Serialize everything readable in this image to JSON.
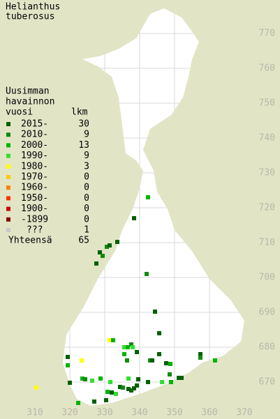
{
  "title": [
    "Helianthus",
    "tuberosus"
  ],
  "legend": {
    "heading": [
      "Uusimman",
      "havainnon",
      "vuosi"
    ],
    "count_heading": "lkm",
    "rows": [
      {
        "label": "2015-",
        "count": 30,
        "color": "#006000"
      },
      {
        "label": "2010-",
        "count": 9,
        "color": "#108a10"
      },
      {
        "label": "2000-",
        "count": 13,
        "color": "#00b400"
      },
      {
        "label": "1990-",
        "count": 9,
        "color": "#30e030"
      },
      {
        "label": "1980-",
        "count": 3,
        "color": "#ffff00"
      },
      {
        "label": "1970-",
        "count": 0,
        "color": "#ffcc00"
      },
      {
        "label": "1960-",
        "count": 0,
        "color": "#ff8000"
      },
      {
        "label": "1950-",
        "count": 0,
        "color": "#ff3000"
      },
      {
        "label": "1900-",
        "count": 0,
        "color": "#cc0000"
      },
      {
        "label": "-1899",
        "count": 0,
        "color": "#880000"
      },
      {
        "label": "???",
        "count": 1,
        "color": "#c8c8c8"
      }
    ],
    "total_label": "Yhteensä",
    "total": 65
  },
  "xlim": [
    300,
    380
  ],
  "ylim": [
    660,
    780
  ],
  "xticks": [
    310,
    320,
    330,
    340,
    350,
    360,
    370
  ],
  "yticks": [
    670,
    680,
    690,
    700,
    710,
    720,
    730,
    740,
    750,
    760,
    770
  ],
  "points": [
    {
      "x": 342.4,
      "y": 723,
      "period": 2
    },
    {
      "x": 338.4,
      "y": 717,
      "period": 0
    },
    {
      "x": 333.6,
      "y": 710.2,
      "period": 0
    },
    {
      "x": 330.6,
      "y": 708.8,
      "period": 1
    },
    {
      "x": 331.4,
      "y": 709.2,
      "period": 0
    },
    {
      "x": 328.6,
      "y": 707.2,
      "period": 0
    },
    {
      "x": 329.4,
      "y": 706.2,
      "period": 1
    },
    {
      "x": 327.6,
      "y": 704,
      "period": 0
    },
    {
      "x": 342,
      "y": 701,
      "period": 1
    },
    {
      "x": 344.4,
      "y": 690.2,
      "period": 0
    },
    {
      "x": 345.6,
      "y": 684,
      "period": 0
    },
    {
      "x": 331.4,
      "y": 682,
      "period": 4
    },
    {
      "x": 332.4,
      "y": 682,
      "period": 2
    },
    {
      "x": 335.6,
      "y": 680,
      "period": 3
    },
    {
      "x": 336.6,
      "y": 680,
      "period": 2
    },
    {
      "x": 337.6,
      "y": 680.8,
      "period": 1
    },
    {
      "x": 338,
      "y": 680,
      "period": 3
    },
    {
      "x": 335.6,
      "y": 678,
      "period": 2
    },
    {
      "x": 336.4,
      "y": 676.2,
      "period": 1
    },
    {
      "x": 339.2,
      "y": 678.6,
      "period": 0
    },
    {
      "x": 345.6,
      "y": 678,
      "period": 0
    },
    {
      "x": 343,
      "y": 676.2,
      "period": 1
    },
    {
      "x": 343.6,
      "y": 676.2,
      "period": 0
    },
    {
      "x": 347.6,
      "y": 675.4,
      "period": 0
    },
    {
      "x": 348.8,
      "y": 675.2,
      "period": 2
    },
    {
      "x": 357.4,
      "y": 678,
      "period": 0
    },
    {
      "x": 357.4,
      "y": 677,
      "period": 1
    },
    {
      "x": 361.6,
      "y": 676.2,
      "period": 2
    },
    {
      "x": 319.4,
      "y": 677.2,
      "period": 0
    },
    {
      "x": 319.4,
      "y": 674.8,
      "period": 2
    },
    {
      "x": 323.4,
      "y": 676.2,
      "period": 4
    },
    {
      "x": 323.6,
      "y": 671,
      "period": 2
    },
    {
      "x": 324.4,
      "y": 670.8,
      "period": 1
    },
    {
      "x": 326.4,
      "y": 670.4,
      "period": 3
    },
    {
      "x": 328.8,
      "y": 671,
      "period": 2
    },
    {
      "x": 331.6,
      "y": 670,
      "period": 3
    },
    {
      "x": 334.4,
      "y": 668.6,
      "period": 0
    },
    {
      "x": 335.2,
      "y": 668.4,
      "period": 1
    },
    {
      "x": 336.8,
      "y": 668,
      "period": 0
    },
    {
      "x": 337.6,
      "y": 667.6,
      "period": 0
    },
    {
      "x": 338.4,
      "y": 668.2,
      "period": 0
    },
    {
      "x": 339.2,
      "y": 669,
      "period": 0
    },
    {
      "x": 336.8,
      "y": 671,
      "period": 3
    },
    {
      "x": 339.6,
      "y": 670.8,
      "period": 0
    },
    {
      "x": 342.4,
      "y": 670,
      "period": 0
    },
    {
      "x": 346.4,
      "y": 670,
      "period": 3
    },
    {
      "x": 348.6,
      "y": 672.2,
      "period": 1
    },
    {
      "x": 349,
      "y": 670,
      "period": 2
    },
    {
      "x": 351.2,
      "y": 671.2,
      "period": 0
    },
    {
      "x": 352,
      "y": 671.2,
      "period": 0
    },
    {
      "x": 330.8,
      "y": 667.2,
      "period": 2
    },
    {
      "x": 332,
      "y": 667,
      "period": 0
    },
    {
      "x": 333.2,
      "y": 666.6,
      "period": 3
    },
    {
      "x": 330.4,
      "y": 664.8,
      "period": 0
    },
    {
      "x": 327,
      "y": 664.4,
      "period": 0
    },
    {
      "x": 322.4,
      "y": 664,
      "period": 2
    },
    {
      "x": 310.4,
      "y": 668.4,
      "period": 4
    },
    {
      "x": 320,
      "y": 669.8,
      "period": 0
    }
  ]
}
